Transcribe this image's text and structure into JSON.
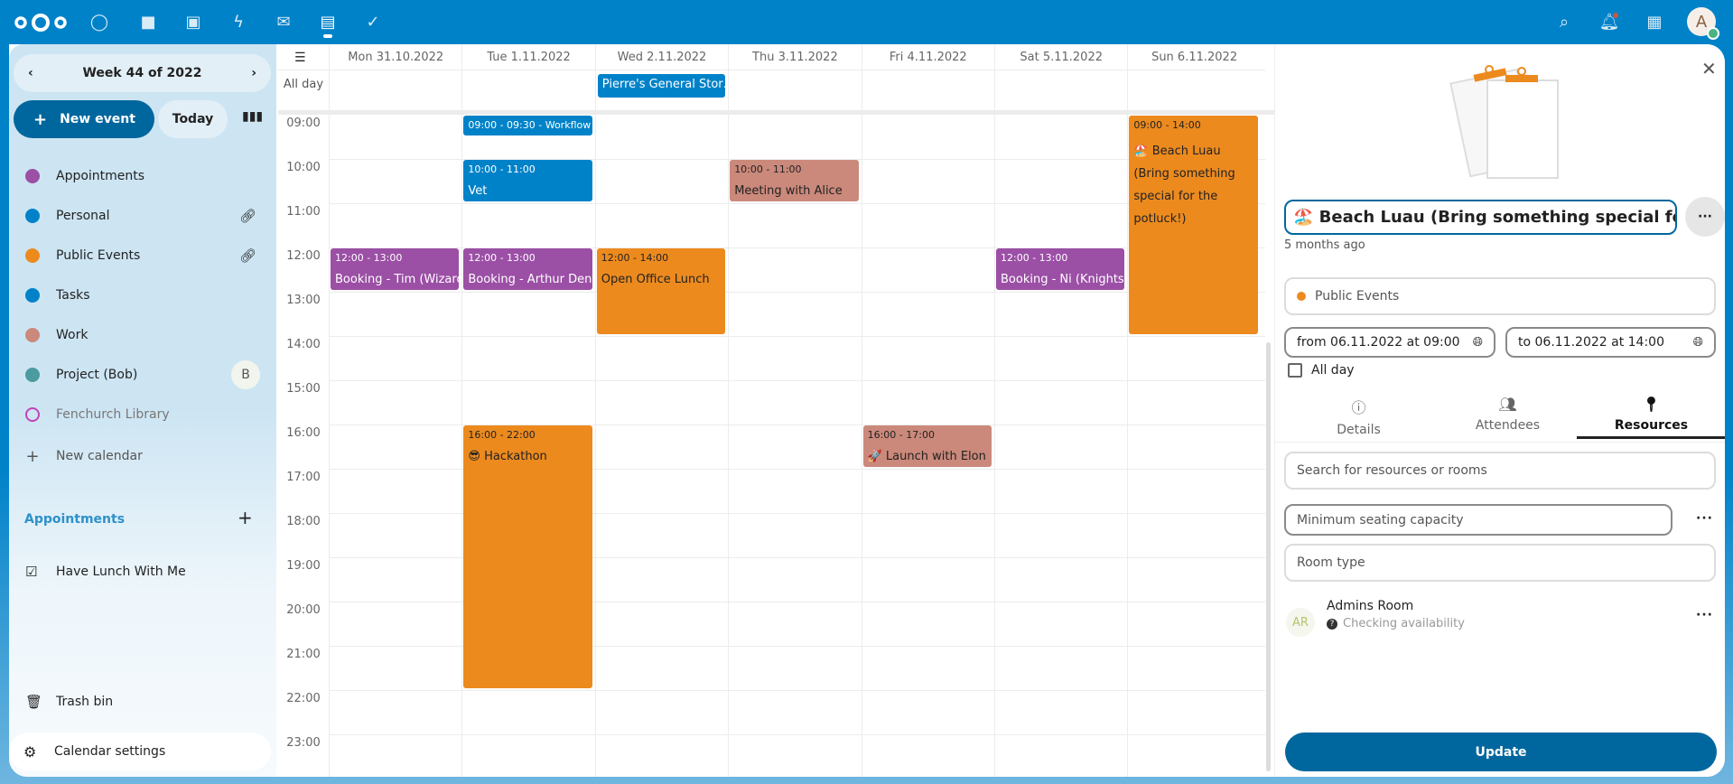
{
  "topbar": {
    "apps": [
      "dashboard-icon",
      "files-icon",
      "photos-icon",
      "activity-icon",
      "mail-icon",
      "calendar-icon",
      "tasks-icon"
    ],
    "avatar_letter": "A",
    "colors": {
      "bar": "#0082c9"
    }
  },
  "sidebar": {
    "week_label": "Week 44 of 2022",
    "new_event": "New event",
    "today": "Today",
    "calendars": [
      {
        "name": "Appointments",
        "color": "#9b4fa5",
        "icon": ""
      },
      {
        "name": "Personal",
        "color": "#0082c9",
        "icon": "link-icon"
      },
      {
        "name": "Public Events",
        "color": "#ec8a1e",
        "icon": "link-icon"
      },
      {
        "name": "Tasks",
        "color": "#0082c9",
        "icon": ""
      },
      {
        "name": "Work",
        "color": "#cb897b",
        "icon": ""
      },
      {
        "name": "Project (Bob)",
        "color": "#4b9b9f",
        "icon": "shared-avatar",
        "avatar": "B"
      },
      {
        "name": "Fenchurch Library",
        "color": "#c343b9",
        "icon": "",
        "disabled": true
      }
    ],
    "new_calendar": "New calendar",
    "appointments_header": "Appointments",
    "appointment_items": [
      "Have Lunch With Me"
    ],
    "trash": "Trash bin",
    "settings": "Calendar settings"
  },
  "grid": {
    "all_day_label": "All day",
    "days": [
      "Mon 31.10.2022",
      "Tue 1.11.2022",
      "Wed 2.11.2022",
      "Thu 3.11.2022",
      "Fri 4.11.2022",
      "Sat 5.11.2022",
      "Sun 6.11.2022"
    ],
    "hours": [
      "09:00",
      "10:00",
      "11:00",
      "12:00",
      "13:00",
      "14:00",
      "15:00",
      "16:00",
      "17:00",
      "18:00",
      "19:00",
      "20:00",
      "21:00",
      "22:00",
      "23:00"
    ],
    "all_day_events": [
      {
        "day": 2,
        "title": "Pierre's General Stor…",
        "color": "#0082c9"
      }
    ],
    "events": [
      {
        "day": 1,
        "start": 9,
        "end": 9.5,
        "time": "09:00 - 09:30 - Workflow",
        "title": "",
        "color": "#0082c9",
        "text": "#fff"
      },
      {
        "day": 1,
        "start": 10,
        "end": 11,
        "time": "10:00 - 11:00",
        "title": "Vet",
        "color": "#0082c9",
        "text": "#fff"
      },
      {
        "day": 3,
        "start": 10,
        "end": 11,
        "time": "10:00 - 11:00",
        "title": "Meeting with Alice",
        "color": "#cb897b",
        "text": "#222"
      },
      {
        "day": 0,
        "start": 12,
        "end": 13,
        "time": "12:00 - 13:00",
        "title": "Booking - Tim (Wizard)",
        "color": "#9b4fa5",
        "text": "#fff"
      },
      {
        "day": 1,
        "start": 12,
        "end": 13,
        "time": "12:00 - 13:00",
        "title": "Booking - Arthur Dent",
        "color": "#9b4fa5",
        "text": "#fff"
      },
      {
        "day": 2,
        "start": 12,
        "end": 14,
        "time": "12:00 - 14:00",
        "title": "Open Office Lunch",
        "color": "#ec8a1e",
        "text": "#222"
      },
      {
        "day": 5,
        "start": 12,
        "end": 13,
        "time": "12:00 - 13:00",
        "title": "Booking - Ni (Knights",
        "color": "#9b4fa5",
        "text": "#fff"
      },
      {
        "day": 6,
        "start": 9,
        "end": 14,
        "time": "09:00 - 14:00",
        "title": "🏖️ Beach Luau (Bring something special for the potluck!)",
        "color": "#ec8a1e",
        "text": "#222",
        "wrap": true
      },
      {
        "day": 1,
        "start": 16,
        "end": 22,
        "time": "16:00 - 22:00",
        "title": "😎 Hackathon",
        "color": "#ec8a1e",
        "text": "#222"
      },
      {
        "day": 4,
        "start": 16,
        "end": 17,
        "time": "16:00 - 17:00",
        "title": "🚀 Launch with Elon",
        "color": "#cb897b",
        "text": "#222"
      }
    ]
  },
  "panel": {
    "title": "🏖️ Beach Luau (Bring something special for",
    "modified": "5 months ago",
    "calendar": "Public Events",
    "calendar_color": "#ec8a1e",
    "from": "from 06.11.2022 at 09:00",
    "to": "to 06.11.2022 at 14:00",
    "all_day": "All day",
    "all_day_checked": false,
    "tabs": [
      "Details",
      "Attendees",
      "Resources"
    ],
    "active_tab": "Resources",
    "search_placeholder": "Search for resources or rooms",
    "capacity_placeholder": "Minimum seating capacity",
    "room_type_placeholder": "Room type",
    "resource": {
      "initials": "AR",
      "name": "Admins Room",
      "status": "Checking availability"
    },
    "update": "Update",
    "update_color": "#00679e"
  }
}
